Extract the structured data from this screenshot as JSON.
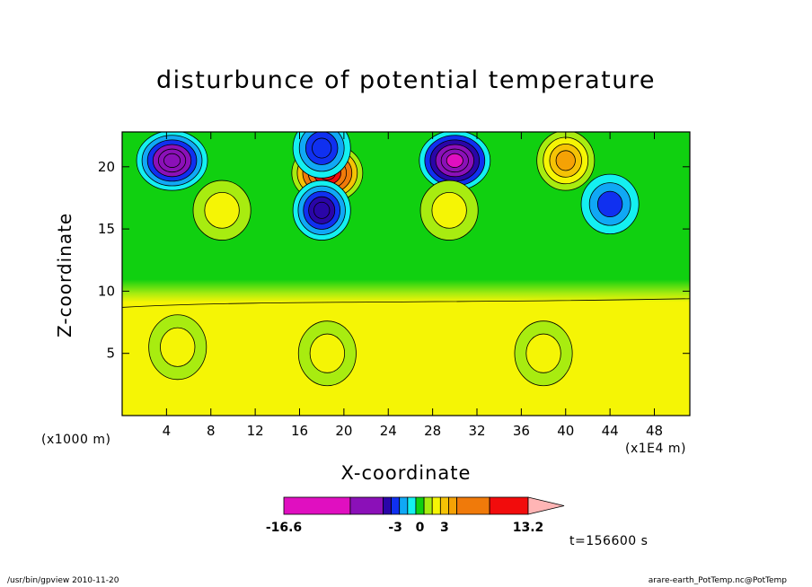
{
  "chart_data": {
    "type": "heatmap",
    "title": "disturbunce of potential temperature",
    "xlabel": "X-coordinate",
    "ylabel": "Z-coordinate",
    "x_unit": "(x1E4 m)",
    "y_unit": "(x1000 m)",
    "xlim": [
      0,
      51.2
    ],
    "ylim": [
      0,
      22.8
    ],
    "x_ticks": [
      4,
      8,
      12,
      16,
      20,
      24,
      28,
      32,
      36,
      40,
      44,
      48
    ],
    "y_ticks": [
      5,
      10,
      15,
      20
    ],
    "time_label": "t=156600 s",
    "colorbar": {
      "min": -16.6,
      "max": 13.2,
      "tick_labels": [
        "-16.6",
        "-3",
        "0",
        "3",
        "13.2"
      ],
      "tick_values": [
        -16.6,
        -3,
        0,
        3,
        13.2
      ],
      "levels": [
        -16.6,
        -8.5,
        -4.5,
        -3.5,
        -2.5,
        -1.5,
        -0.5,
        0.5,
        1.5,
        2.5,
        3.5,
        4.5,
        8.5,
        13.2
      ],
      "colors": [
        "#e00fc0",
        "#8b10b8",
        "#2a05a8",
        "#1030f0",
        "#10a8f5",
        "#14f0f0",
        "#10d010",
        "#a8ec10",
        "#f5f505",
        "#f5c305",
        "#f5a205",
        "#f07a0a",
        "#f20c0c",
        "#f57a70",
        "#ffb5b5"
      ]
    },
    "features": [
      {
        "x": 18.5,
        "z": 19.5,
        "value": 13.0
      },
      {
        "x": 4.5,
        "z": 20.5,
        "value": -7.0
      },
      {
        "x": 30.0,
        "z": 20.5,
        "value": -9.0
      },
      {
        "x": 18.0,
        "z": 16.5,
        "value": -4.5
      },
      {
        "x": 18.0,
        "z": 21.5,
        "value": -3.5
      },
      {
        "x": 40.0,
        "z": 20.5,
        "value": 4.0
      },
      {
        "x": 44.0,
        "z": 17.0,
        "value": -3.0
      },
      {
        "x": 18.5,
        "z": 5.0,
        "value": 1.8
      },
      {
        "x": 5.0,
        "z": 5.5,
        "value": 1.8
      },
      {
        "x": 38.0,
        "z": 5.0,
        "value": 1.8
      },
      {
        "x": 9.0,
        "z": 16.5,
        "value": 2.2
      },
      {
        "x": 29.5,
        "z": 16.5,
        "value": 2.2
      }
    ]
  },
  "footer": {
    "left": "/usr/bin/gpview   2010-11-20",
    "right": "arare-earth_PotTemp.nc@PotTemp"
  }
}
